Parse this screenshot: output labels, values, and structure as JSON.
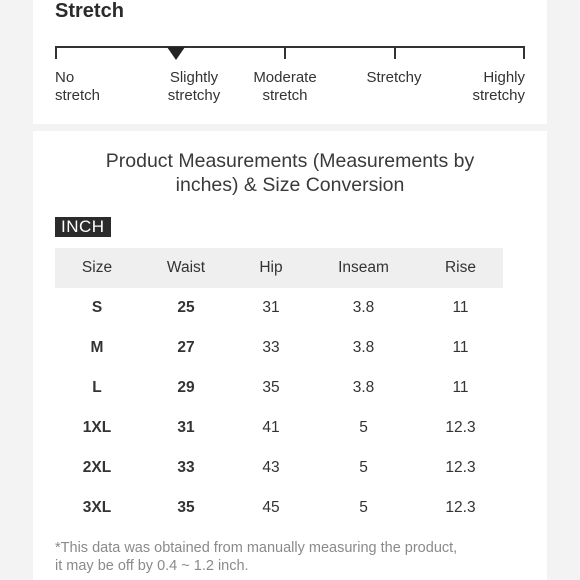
{
  "stretch": {
    "title": "Stretch",
    "levels": [
      "No\nstretch",
      "Slightly\nstretchy",
      "Moderate\nstretch",
      "Stretchy",
      "Highly\nstretchy"
    ],
    "selected": "Slightly\nstretchy"
  },
  "measurements": {
    "title": "Product Measurements (Measurements by\ninches) & Size Conversion",
    "unit_badge": "INCH",
    "headers": [
      "Size",
      "Waist",
      "Hip",
      "Inseam",
      "Rise"
    ],
    "rows": [
      [
        "S",
        "25",
        "31",
        "3.8",
        "11"
      ],
      [
        "M",
        "27",
        "33",
        "3.8",
        "11"
      ],
      [
        "L",
        "29",
        "35",
        "3.8",
        "11"
      ],
      [
        "1XL",
        "31",
        "41",
        "5",
        "12.3"
      ],
      [
        "2XL",
        "33",
        "43",
        "5",
        "12.3"
      ],
      [
        "3XL",
        "35",
        "45",
        "5",
        "12.3"
      ]
    ],
    "footnote": "*This data was obtained from manually measuring the product,\n it may be off by 0.4 ~ 1.2 inch."
  },
  "colors": {
    "background": "#f3f3f3",
    "card": "#ffffff",
    "header_row": "#efefef",
    "badge": "#2b2b2b",
    "footnote": "#8a8a8a"
  }
}
